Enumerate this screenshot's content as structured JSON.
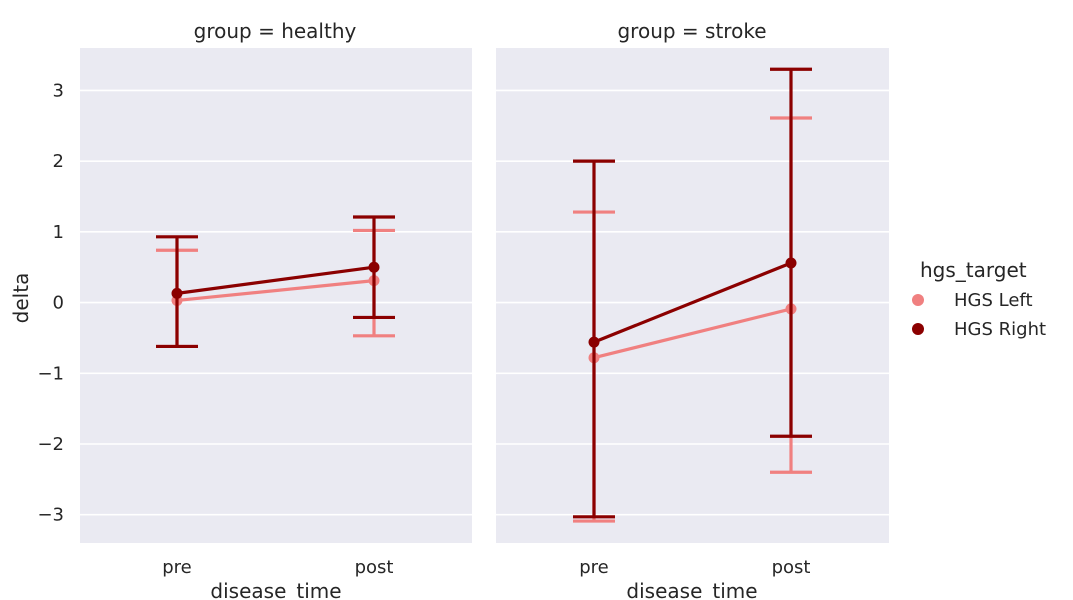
{
  "chart_data": {
    "type": "line",
    "ylabel": "delta",
    "ylim": [
      -3.4,
      3.6
    ],
    "yticks": [
      -3,
      -2,
      -1,
      0,
      1,
      2,
      3
    ],
    "ytick_labels": [
      "−3",
      "−2",
      "−1",
      "0",
      "1",
      "2",
      "3"
    ],
    "categories": [
      "pre",
      "post"
    ],
    "grid": true,
    "legend": {
      "title": "hgs_target",
      "placement": "right",
      "entries": [
        "HGS Left",
        "HGS Right"
      ]
    },
    "colors": {
      "HGS Left": "#f08080",
      "HGS Right": "#8b0000",
      "panel_bg": "#eaeaf2",
      "grid": "#ffffff"
    },
    "facets": [
      {
        "title": "group = healthy",
        "xlabel": "disease_time",
        "series": [
          {
            "name": "HGS Left",
            "values": [
              0.03,
              0.31
            ],
            "err_low": [
              -0.62,
              -0.47
            ],
            "err_high": [
              0.74,
              1.02
            ]
          },
          {
            "name": "HGS Right",
            "values": [
              0.13,
              0.5
            ],
            "err_low": [
              -0.62,
              -0.21
            ],
            "err_high": [
              0.93,
              1.21
            ]
          }
        ]
      },
      {
        "title": "group = stroke",
        "xlabel": "disease_time",
        "series": [
          {
            "name": "HGS Left",
            "values": [
              -0.78,
              -0.09
            ],
            "err_low": [
              -3.09,
              -2.4
            ],
            "err_high": [
              1.28,
              2.61
            ]
          },
          {
            "name": "HGS Right",
            "values": [
              -0.56,
              0.56
            ],
            "err_low": [
              -3.03,
              -1.89
            ],
            "err_high": [
              2.0,
              3.3
            ]
          }
        ]
      }
    ]
  }
}
